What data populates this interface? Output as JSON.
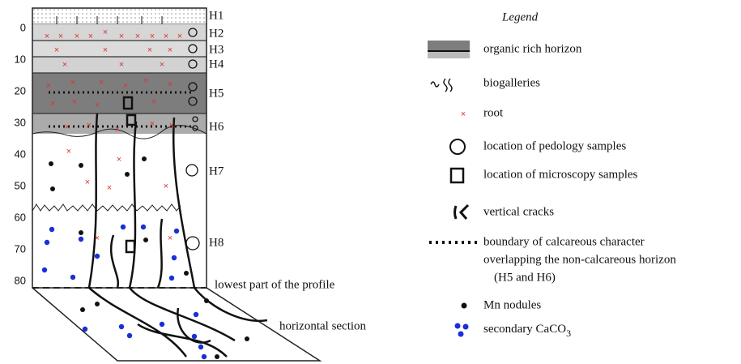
{
  "profile": {
    "depth_scale": [
      0,
      10,
      20,
      30,
      40,
      50,
      60,
      70,
      80
    ],
    "horizons": [
      "H1",
      "H2",
      "H3",
      "H4",
      "H5",
      "H6",
      "H7",
      "H8"
    ],
    "bottom_label": "lowest part of the profile",
    "section_label": "horizontal section"
  },
  "legend": {
    "title": "Legend",
    "items": [
      {
        "label": "organic rich horizon"
      },
      {
        "label": "biogalleries"
      },
      {
        "label": "root"
      },
      {
        "label": "location of pedology samples"
      },
      {
        "label": "location of microscopy samples"
      },
      {
        "label": "vertical cracks"
      },
      {
        "lines": [
          "boundary of calcareous character",
          "overlapping the non-calcareous horizon",
          "(H5 and H6)"
        ]
      },
      {
        "label": "Mn nodules"
      },
      {
        "label": "secondary CaCO",
        "subscript": "3"
      }
    ]
  }
}
